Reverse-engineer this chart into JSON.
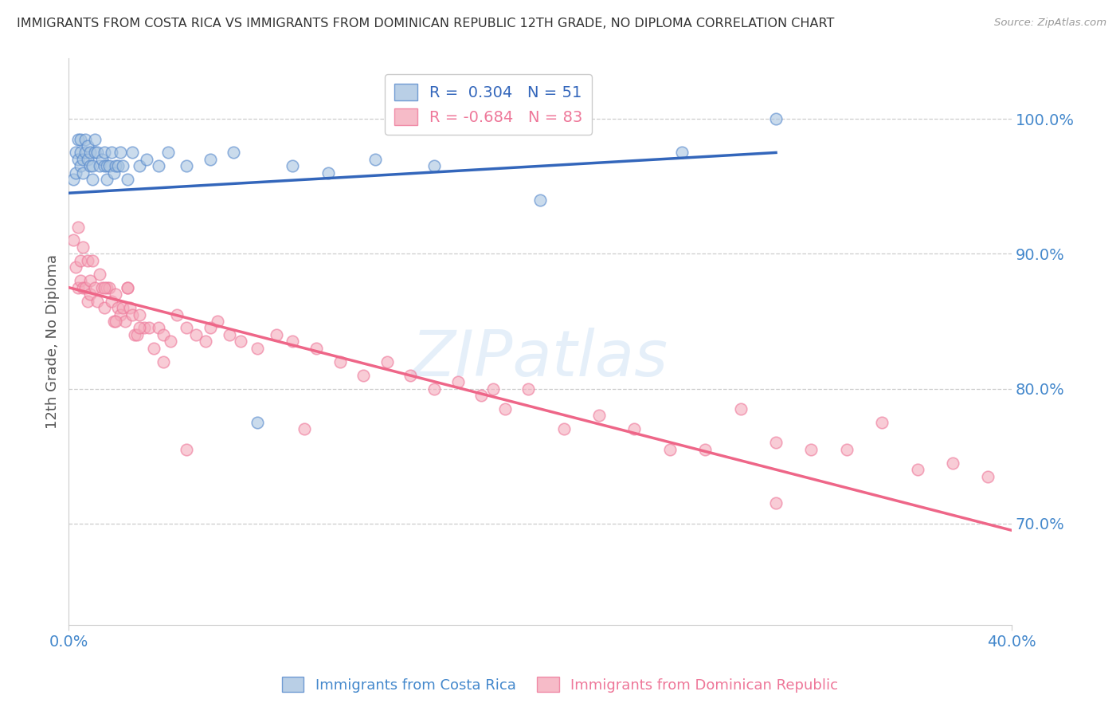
{
  "title": "IMMIGRANTS FROM COSTA RICA VS IMMIGRANTS FROM DOMINICAN REPUBLIC 12TH GRADE, NO DIPLOMA CORRELATION CHART",
  "source": "Source: ZipAtlas.com",
  "ylabel": "12th Grade, No Diploma",
  "ytick_labels": [
    "100.0%",
    "90.0%",
    "80.0%",
    "70.0%"
  ],
  "ytick_values": [
    1.0,
    0.9,
    0.8,
    0.7
  ],
  "xlim": [
    0.0,
    0.4
  ],
  "ylim": [
    0.625,
    1.045
  ],
  "blue_R": 0.304,
  "blue_N": 51,
  "pink_R": -0.684,
  "pink_N": 83,
  "watermark": "ZIPatlas",
  "blue_color": "#A8C4E0",
  "pink_color": "#F4AABB",
  "blue_edge_color": "#5588CC",
  "pink_edge_color": "#EE7799",
  "blue_line_color": "#3366BB",
  "pink_line_color": "#EE6688",
  "title_color": "#333333",
  "source_color": "#999999",
  "axis_label_color": "#4488CC",
  "grid_color": "#CCCCCC",
  "background_color": "#FFFFFF",
  "blue_scatter_x": [
    0.002,
    0.003,
    0.003,
    0.004,
    0.004,
    0.005,
    0.005,
    0.005,
    0.006,
    0.006,
    0.007,
    0.007,
    0.008,
    0.008,
    0.009,
    0.009,
    0.01,
    0.01,
    0.011,
    0.011,
    0.012,
    0.013,
    0.014,
    0.015,
    0.015,
    0.016,
    0.016,
    0.017,
    0.018,
    0.019,
    0.02,
    0.021,
    0.022,
    0.023,
    0.025,
    0.027,
    0.03,
    0.033,
    0.038,
    0.042,
    0.05,
    0.06,
    0.07,
    0.08,
    0.095,
    0.11,
    0.13,
    0.155,
    0.2,
    0.26,
    0.3
  ],
  "blue_scatter_y": [
    0.955,
    0.975,
    0.96,
    0.97,
    0.985,
    0.965,
    0.975,
    0.985,
    0.96,
    0.97,
    0.975,
    0.985,
    0.97,
    0.98,
    0.965,
    0.975,
    0.955,
    0.965,
    0.975,
    0.985,
    0.975,
    0.965,
    0.97,
    0.965,
    0.975,
    0.955,
    0.965,
    0.965,
    0.975,
    0.96,
    0.965,
    0.965,
    0.975,
    0.965,
    0.955,
    0.975,
    0.965,
    0.97,
    0.965,
    0.975,
    0.965,
    0.97,
    0.975,
    0.775,
    0.965,
    0.96,
    0.97,
    0.965,
    0.94,
    0.975,
    1.0
  ],
  "pink_scatter_x": [
    0.002,
    0.003,
    0.004,
    0.004,
    0.005,
    0.005,
    0.006,
    0.006,
    0.007,
    0.008,
    0.008,
    0.009,
    0.009,
    0.01,
    0.011,
    0.012,
    0.013,
    0.014,
    0.015,
    0.016,
    0.017,
    0.018,
    0.019,
    0.02,
    0.021,
    0.022,
    0.023,
    0.024,
    0.025,
    0.026,
    0.027,
    0.028,
    0.029,
    0.03,
    0.032,
    0.034,
    0.036,
    0.038,
    0.04,
    0.043,
    0.046,
    0.05,
    0.054,
    0.058,
    0.063,
    0.068,
    0.073,
    0.08,
    0.088,
    0.095,
    0.105,
    0.115,
    0.125,
    0.135,
    0.145,
    0.155,
    0.165,
    0.175,
    0.185,
    0.195,
    0.21,
    0.225,
    0.24,
    0.255,
    0.27,
    0.285,
    0.3,
    0.315,
    0.33,
    0.345,
    0.36,
    0.375,
    0.39,
    0.015,
    0.02,
    0.025,
    0.03,
    0.04,
    0.05,
    0.06,
    0.1,
    0.18,
    0.3
  ],
  "pink_scatter_y": [
    0.91,
    0.89,
    0.92,
    0.875,
    0.895,
    0.88,
    0.905,
    0.875,
    0.875,
    0.895,
    0.865,
    0.88,
    0.87,
    0.895,
    0.875,
    0.865,
    0.885,
    0.875,
    0.86,
    0.875,
    0.875,
    0.865,
    0.85,
    0.87,
    0.86,
    0.855,
    0.86,
    0.85,
    0.875,
    0.86,
    0.855,
    0.84,
    0.84,
    0.855,
    0.845,
    0.845,
    0.83,
    0.845,
    0.84,
    0.835,
    0.855,
    0.845,
    0.84,
    0.835,
    0.85,
    0.84,
    0.835,
    0.83,
    0.84,
    0.835,
    0.83,
    0.82,
    0.81,
    0.82,
    0.81,
    0.8,
    0.805,
    0.795,
    0.785,
    0.8,
    0.77,
    0.78,
    0.77,
    0.755,
    0.755,
    0.785,
    0.76,
    0.755,
    0.755,
    0.775,
    0.74,
    0.745,
    0.735,
    0.875,
    0.85,
    0.875,
    0.845,
    0.82,
    0.755,
    0.845,
    0.77,
    0.8,
    0.715
  ],
  "blue_line_x": [
    0.0,
    0.3
  ],
  "blue_line_y": [
    0.945,
    0.975
  ],
  "pink_line_x": [
    0.0,
    0.4
  ],
  "pink_line_y": [
    0.875,
    0.695
  ]
}
